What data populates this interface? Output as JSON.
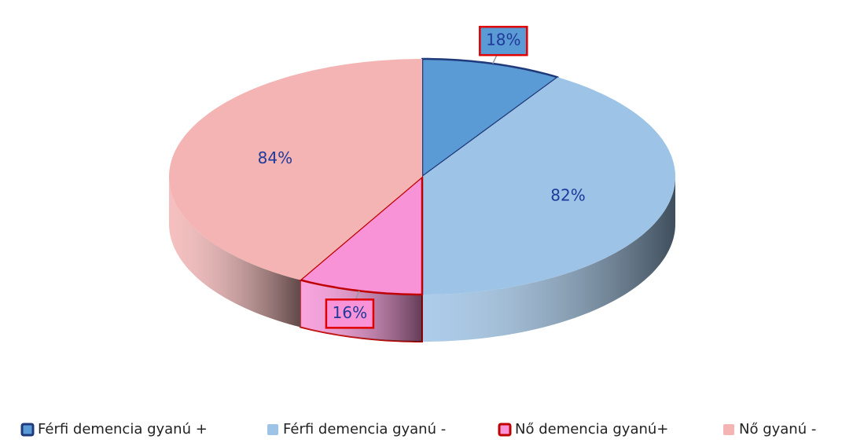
{
  "chart_data": {
    "type": "pie",
    "categories": [
      "Férfi demencia gyanú +",
      "Férfi demencia gyanú -",
      "Nő demencia gyanú+",
      "Nő gyanú -"
    ],
    "values": [
      18,
      82,
      16,
      84
    ],
    "value_labels": [
      "18%",
      "82%",
      "16%",
      "84%"
    ],
    "colors": [
      "#5b9bd5",
      "#9dc3e6",
      "#f893d8",
      "#f4b4b4"
    ],
    "edge_colors": [
      "#1f3a7a",
      null,
      "#c00000",
      null
    ],
    "legend": "bottom"
  }
}
